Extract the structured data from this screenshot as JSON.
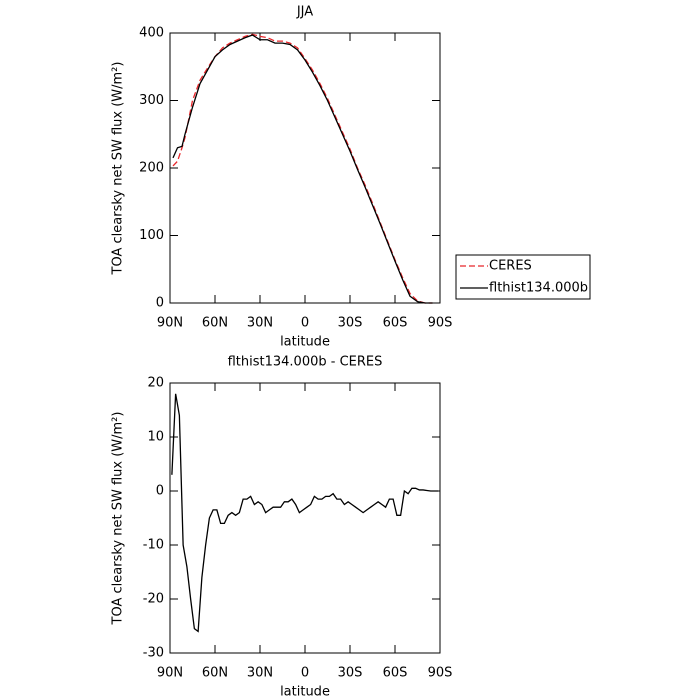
{
  "chart_data": [
    {
      "type": "line",
      "title": "JJA",
      "xlabel": "latitude",
      "ylabel": "TOA clearsky net SW flux (W/m²)",
      "xlim": [
        90,
        -90
      ],
      "xticks": [
        {
          "value": 90,
          "label": "90N"
        },
        {
          "value": 60,
          "label": "60N"
        },
        {
          "value": 30,
          "label": "30N"
        },
        0,
        {
          "value": -30,
          "label": "30S"
        },
        {
          "value": -60,
          "label": "60S"
        },
        {
          "value": -90,
          "label": "90S"
        }
      ],
      "ylim": [
        0,
        400
      ],
      "yticks": [
        0,
        100,
        200,
        300,
        400
      ],
      "legend": "right",
      "x": [
        88,
        85,
        82,
        80,
        75,
        70,
        65,
        60,
        55,
        50,
        45,
        40,
        35,
        30,
        25,
        20,
        15,
        10,
        5,
        0,
        -5,
        -10,
        -15,
        -20,
        -25,
        -30,
        -35,
        -40,
        -45,
        -50,
        -55,
        -60,
        -65,
        -70,
        -75,
        -80,
        -85
      ],
      "series": [
        {
          "name": "CERES",
          "color": "#e8262a",
          "style": "dashed",
          "values": [
            203,
            210,
            230,
            245,
            300,
            330,
            348,
            365,
            378,
            385,
            390,
            395,
            398,
            395,
            393,
            388,
            388,
            385,
            378,
            362,
            345,
            325,
            303,
            278,
            253,
            228,
            200,
            175,
            148,
            120,
            92,
            64,
            38,
            14,
            3,
            0,
            0
          ]
        },
        {
          "name": "flthist134.000b",
          "color": "#000000",
          "style": "solid",
          "values": [
            215,
            230,
            232,
            250,
            290,
            325,
            345,
            365,
            375,
            383,
            388,
            393,
            397,
            390,
            390,
            385,
            385,
            383,
            375,
            360,
            342,
            322,
            300,
            275,
            250,
            225,
            198,
            172,
            145,
            118,
            90,
            62,
            35,
            10,
            2,
            0,
            0
          ]
        }
      ]
    },
    {
      "type": "line",
      "title": "flthist134.000b - CERES",
      "xlabel": "latitude",
      "ylabel": "TOA clearsky net SW flux (W/m²)",
      "xlim": [
        90,
        -90
      ],
      "xticks": [
        {
          "value": 90,
          "label": "90N"
        },
        {
          "value": 60,
          "label": "60N"
        },
        {
          "value": 30,
          "label": "30N"
        },
        0,
        {
          "value": -30,
          "label": "30S"
        },
        {
          "value": -60,
          "label": "60S"
        },
        {
          "value": -90,
          "label": "90S"
        }
      ],
      "ylim": [
        -30,
        20
      ],
      "yticks": [
        -30,
        -20,
        -10,
        0,
        10,
        20
      ],
      "x": [
        88.75,
        86.25,
        83.75,
        81.25,
        78.75,
        76.25,
        73.75,
        71.25,
        68.75,
        66.25,
        63.75,
        61.25,
        58.75,
        56.25,
        53.75,
        51.25,
        48.75,
        46.25,
        43.75,
        41.25,
        38.75,
        36.25,
        33.75,
        31.25,
        28.75,
        26.25,
        23.75,
        21.25,
        18.75,
        16.25,
        13.75,
        11.25,
        8.75,
        6.25,
        3.75,
        1.25,
        -1.25,
        -3.75,
        -6.25,
        -8.75,
        -11.25,
        -13.75,
        -16.25,
        -18.75,
        -21.25,
        -23.75,
        -26.25,
        -28.75,
        -31.25,
        -33.75,
        -36.25,
        -38.75,
        -41.25,
        -43.75,
        -46.25,
        -48.75,
        -51.25,
        -53.75,
        -56.25,
        -58.75,
        -61.25,
        -63.75,
        -66.25,
        -68.75,
        -71.25,
        -73.75,
        -76.25,
        -78.75,
        -81.25,
        -83.75,
        -86.25,
        -88.75
      ],
      "series": [
        {
          "color": "#000000",
          "style": "solid",
          "values": [
            3,
            18,
            14,
            -10,
            -14,
            -20,
            -25.5,
            -26,
            -16,
            -10,
            -5,
            -3.5,
            -3.5,
            -6,
            -6,
            -4.5,
            -4,
            -4.5,
            -4,
            -1.5,
            -1.5,
            -1,
            -2.5,
            -2,
            -2.5,
            -4,
            -3.5,
            -3,
            -3,
            -3,
            -2,
            -2,
            -1.5,
            -2.5,
            -4,
            -3.5,
            -3,
            -2.5,
            -1,
            -1.5,
            -1.5,
            -1,
            -1,
            -0.5,
            -1.5,
            -1.5,
            -2.5,
            -2,
            -2.5,
            -3,
            -3.5,
            -4,
            -3.5,
            -3,
            -2.5,
            -2,
            -2.5,
            -3,
            -1.5,
            -1.5,
            -4.5,
            -4.5,
            0,
            -0.5,
            0.5,
            0.5,
            0.2,
            0.2,
            0.1,
            0,
            0,
            0
          ]
        }
      ]
    }
  ]
}
